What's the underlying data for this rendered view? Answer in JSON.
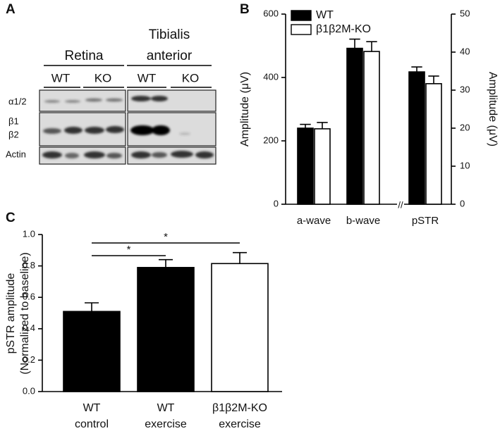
{
  "panels": [
    "A",
    "B",
    "C"
  ],
  "blot": {
    "tissues": [
      [
        "Retina"
      ],
      [
        "Tibialis",
        "anterior"
      ]
    ],
    "lanes": [
      "WT",
      "KO",
      "WT",
      "KO"
    ],
    "rows": [
      "α1/2",
      "β1",
      "β2",
      "Actin"
    ]
  },
  "chart_data": [
    {
      "type": "bar",
      "categories": [
        "a-wave",
        "b-wave",
        "pSTR"
      ],
      "category_axes": [
        "y",
        "y",
        "y2"
      ],
      "y_label": "Amplitude (μV)",
      "y2_label": "Amplitude (μV)",
      "series": [
        {
          "name": "WT",
          "color": "#000000",
          "values": [
            240,
            492,
            34.8
          ],
          "errors": [
            12,
            29,
            1.3
          ]
        },
        {
          "name": "β1β2M-KO",
          "color": "#ffffff",
          "values": [
            238,
            482,
            31.7
          ],
          "errors": [
            20,
            31,
            2
          ]
        }
      ],
      "ylim": [
        0,
        600
      ],
      "yticks": [
        0,
        200,
        400,
        600
      ],
      "y2lim": [
        0,
        50
      ],
      "y2ticks": [
        0,
        10,
        20,
        30,
        40,
        50
      ],
      "legend": "top-left"
    },
    {
      "type": "bar",
      "categories": [
        [
          "WT",
          "control"
        ],
        [
          "WT",
          "exercise"
        ],
        [
          "β1β2M-KO",
          "exercise"
        ]
      ],
      "y_label": [
        "pSTR amplitude",
        "(Normalized to baseline)"
      ],
      "values": [
        0.51,
        0.79,
        0.815
      ],
      "errors": [
        0.055,
        0.05,
        0.07
      ],
      "colors": [
        "#000000",
        "#000000",
        "#ffffff"
      ],
      "ylim": [
        0,
        1
      ],
      "yticks": [
        {
          "value": 0,
          "label": "0.0"
        },
        0.2,
        0.4,
        0.6,
        0.8,
        {
          "value": 1,
          "label": "1.0"
        }
      ],
      "annotations": [
        {
          "label": "*",
          "from": 0,
          "to": 1
        },
        {
          "label": "*",
          "from": 0,
          "to": 2
        }
      ]
    }
  ]
}
